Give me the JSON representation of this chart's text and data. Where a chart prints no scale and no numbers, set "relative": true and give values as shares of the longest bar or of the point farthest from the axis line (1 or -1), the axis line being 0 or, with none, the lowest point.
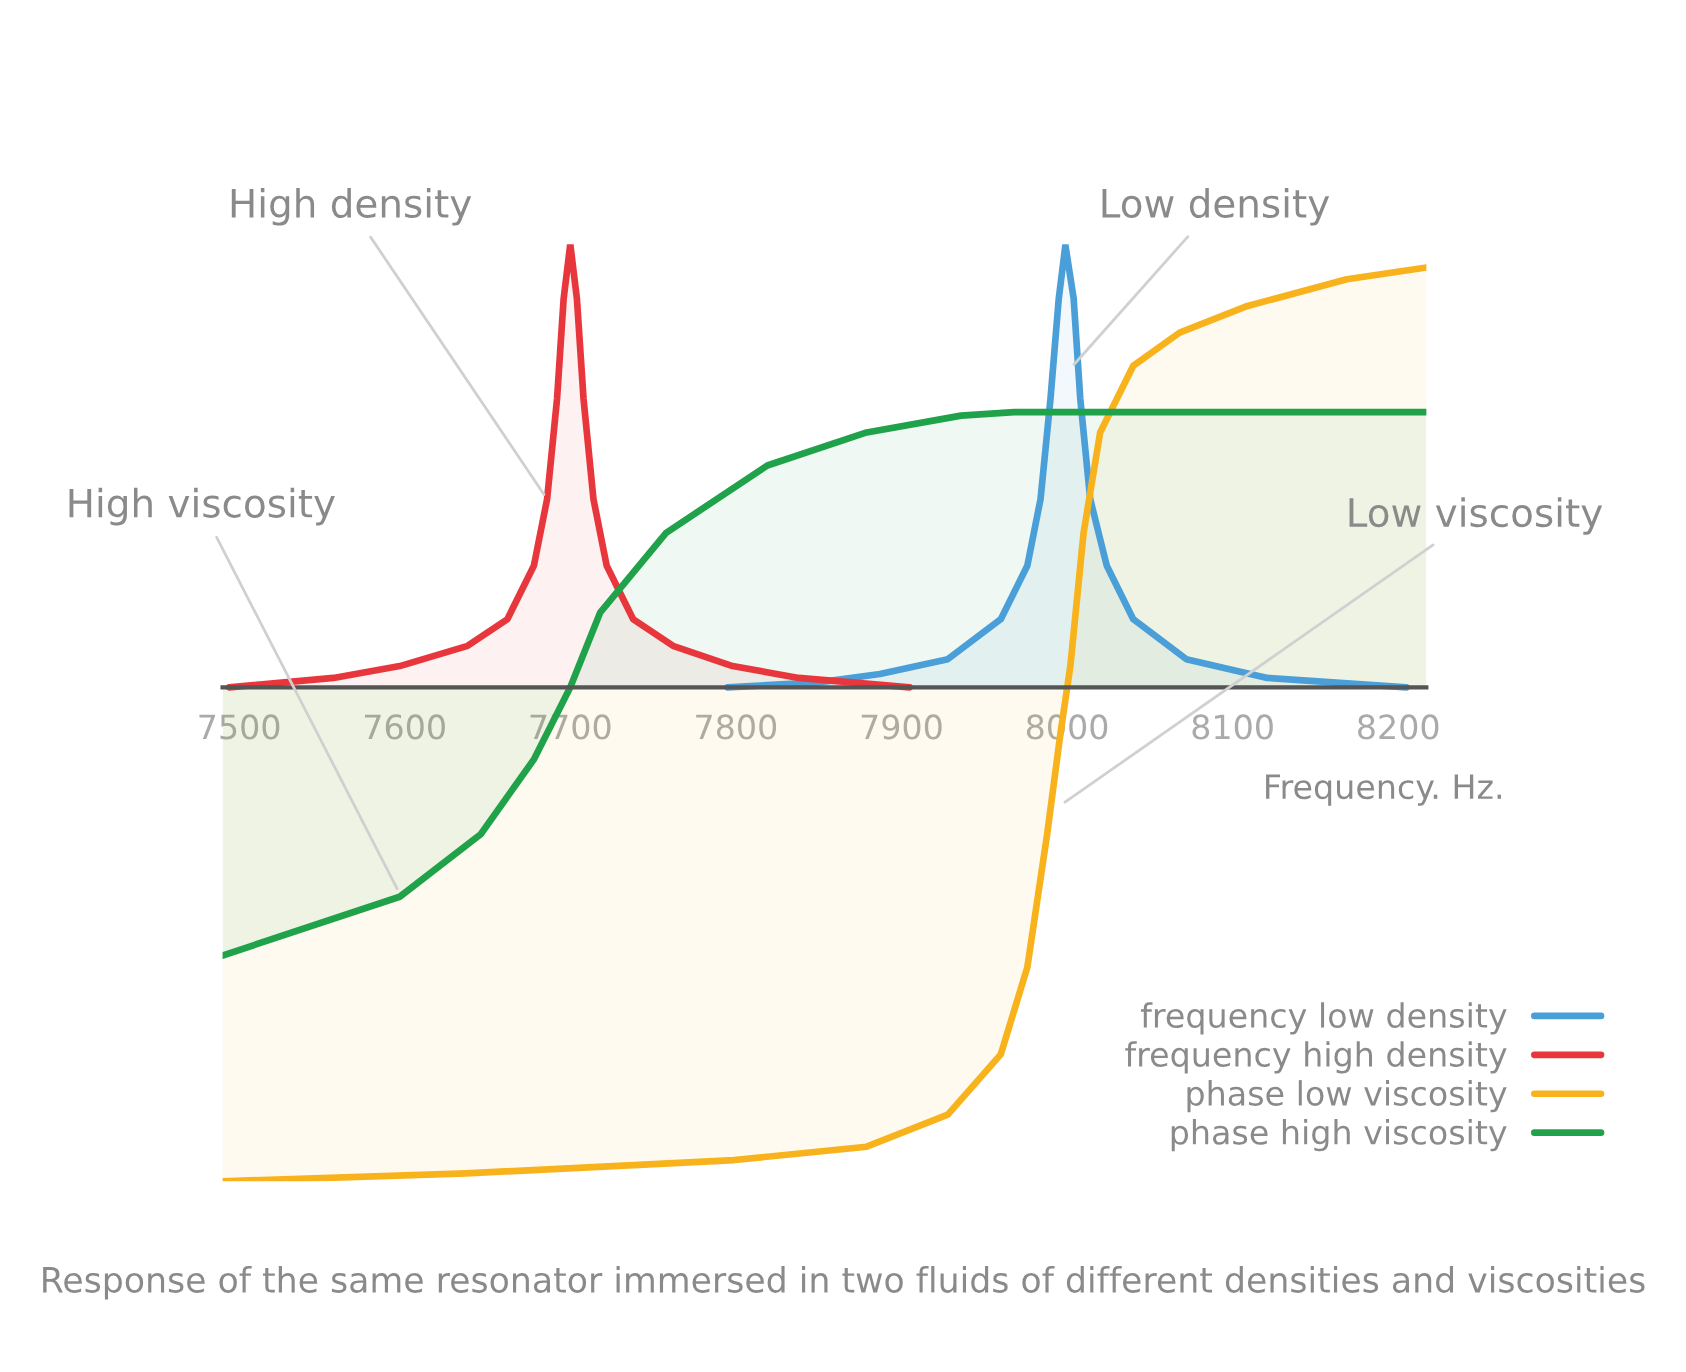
{
  "chart_data": {
    "type": "area",
    "relative": true,
    "xlabel": "Frequency. Hz.",
    "xlim": [
      7490,
      8217
    ],
    "xticks": [
      7500,
      7600,
      7700,
      7800,
      7900,
      8000,
      8100,
      8200
    ],
    "grid": false,
    "legend": "bottom right",
    "marker": "none",
    "line_style": "solid",
    "series": [
      {
        "name": "frequency low density",
        "color": "#4a9fd8",
        "x": [
          7795,
          7850,
          7887,
          7928,
          7960,
          7976,
          7984,
          7990,
          7995,
          7999,
          8004,
          8008,
          8014,
          8024,
          8040,
          8072,
          8121,
          8205
        ],
        "values": [
          0,
          0.01,
          0.027,
          0.057,
          0.138,
          0.246,
          0.381,
          0.584,
          0.787,
          0.895,
          0.787,
          0.584,
          0.381,
          0.246,
          0.138,
          0.057,
          0.019,
          0
        ]
      },
      {
        "name": "frequency high density",
        "color": "#e8373c",
        "x": [
          7494,
          7557,
          7597,
          7638,
          7662,
          7678,
          7686,
          7692,
          7696,
          7700,
          7704,
          7708,
          7714,
          7722,
          7738,
          7762,
          7798,
          7838,
          7905
        ],
        "values": [
          0,
          0.019,
          0.043,
          0.084,
          0.138,
          0.246,
          0.381,
          0.584,
          0.787,
          0.897,
          0.787,
          0.584,
          0.381,
          0.246,
          0.138,
          0.084,
          0.043,
          0.019,
          0
        ]
      },
      {
        "name": "phase low viscosity",
        "color": "#f8b21c",
        "x": [
          7490,
          7637,
          7799,
          7879,
          7928,
          7960,
          7976,
          7988,
          7996,
          8002,
          8010,
          8020,
          8040,
          8068,
          8109,
          8169,
          8217
        ],
        "values": [
          -1.0,
          -0.984,
          -0.957,
          -0.93,
          -0.865,
          -0.743,
          -0.567,
          -0.297,
          -0.094,
          0.043,
          0.313,
          0.516,
          0.651,
          0.718,
          0.772,
          0.826,
          0.85
        ]
      },
      {
        "name": "phase high viscosity",
        "color": "#1fa24a",
        "x": [
          7490,
          7597,
          7646,
          7678,
          7700,
          7718,
          7758,
          7819,
          7879,
          7936,
          7968,
          8217
        ],
        "values": [
          -0.543,
          -0.424,
          -0.297,
          -0.146,
          0,
          0.151,
          0.313,
          0.449,
          0.516,
          0.55,
          0.557,
          0.557
        ]
      }
    ],
    "annotations": [
      {
        "text": "High density",
        "x": 7686,
        "y": 0.381
      },
      {
        "text": "Low density",
        "x": 8002,
        "y": 0.645
      },
      {
        "text": "High viscosity",
        "x": 7597,
        "y": -0.418
      },
      {
        "text": "Low viscosity",
        "x": 7996,
        "y": -0.239
      },
      "Response of the same resonator immersed in two fluids of different densities and viscosities"
    ]
  }
}
